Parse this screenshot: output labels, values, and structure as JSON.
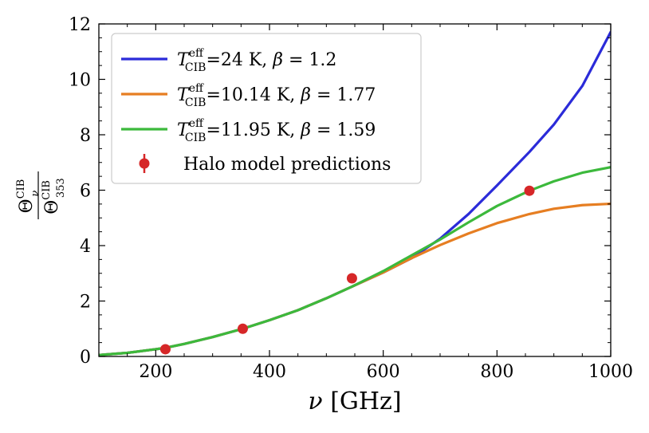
{
  "chart_data": {
    "type": "line",
    "xlabel": "ν [GHz]",
    "ylabel": "Θ_ν^CIB / Θ_353^CIB",
    "xlim": [
      100,
      1000
    ],
    "ylim": [
      0,
      12
    ],
    "x_ticks": [
      200,
      400,
      600,
      800,
      1000
    ],
    "y_ticks": [
      0,
      2,
      4,
      6,
      8,
      10,
      12
    ],
    "grid": false,
    "legend_position": "top-left",
    "series": [
      {
        "name": "T_CIB^eff=24 K, β = 1.2",
        "color": "#2b2bd9",
        "T": 24,
        "beta": 1.2,
        "x": [
          100,
          150,
          200,
          217,
          250,
          300,
          353,
          400,
          450,
          500,
          545,
          600,
          650,
          700,
          750,
          800,
          857,
          900,
          950,
          1000
        ],
        "y": [
          0.05,
          0.13,
          0.26,
          0.31,
          0.45,
          0.7,
          1.0,
          1.31,
          1.67,
          2.1,
          2.52,
          3.03,
          3.55,
          4.25,
          5.14,
          6.17,
          7.38,
          8.37,
          9.76,
          11.71
        ]
      },
      {
        "name": "T_CIB^eff=10.14 K, β = 1.77",
        "color": "#e67e22",
        "T": 10.14,
        "beta": 1.77,
        "x": [
          100,
          150,
          200,
          217,
          250,
          300,
          353,
          400,
          450,
          500,
          545,
          600,
          650,
          700,
          750,
          800,
          857,
          900,
          950,
          1000
        ],
        "y": [
          0.05,
          0.13,
          0.26,
          0.31,
          0.45,
          0.7,
          1.0,
          1.31,
          1.67,
          2.1,
          2.52,
          3.03,
          3.55,
          4.02,
          4.44,
          4.81,
          5.14,
          5.33,
          5.46,
          5.51
        ]
      },
      {
        "name": "T_CIB^eff=11.95 K, β = 1.59",
        "color": "#3cb93c",
        "T": 11.95,
        "beta": 1.59,
        "x": [
          100,
          150,
          200,
          217,
          250,
          300,
          353,
          400,
          450,
          500,
          545,
          600,
          650,
          700,
          750,
          800,
          857,
          900,
          950,
          1000
        ],
        "y": [
          0.05,
          0.13,
          0.26,
          0.31,
          0.45,
          0.7,
          1.0,
          1.31,
          1.67,
          2.1,
          2.52,
          3.08,
          3.65,
          4.22,
          4.84,
          5.43,
          5.98,
          6.32,
          6.63,
          6.83
        ]
      }
    ],
    "points": {
      "name": "Halo model predictions",
      "color": "#d62728",
      "x": [
        217,
        353,
        545,
        857
      ],
      "y": [
        0.26,
        1.0,
        2.82,
        5.98
      ]
    }
  }
}
